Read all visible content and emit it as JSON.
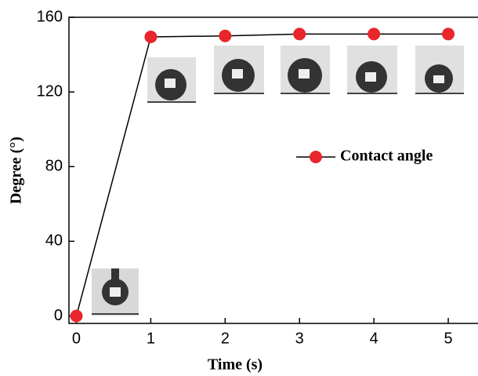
{
  "chart_data": {
    "type": "line",
    "x_label": "Time (s)",
    "y_label": "Degree (°)",
    "x": [
      0,
      1,
      2,
      3,
      4,
      5
    ],
    "series": [
      {
        "name": "Contact angle",
        "color": "#e8262c",
        "line_color": "#000000",
        "values": [
          0,
          149.5,
          150,
          151,
          151,
          151
        ]
      }
    ],
    "xlim": [
      -0.1,
      5.4
    ],
    "xticks": [
      0,
      1,
      2,
      3,
      4,
      5
    ],
    "ylim": [
      -4,
      160
    ],
    "yticks": [
      0,
      40,
      80,
      120,
      160
    ]
  }
}
